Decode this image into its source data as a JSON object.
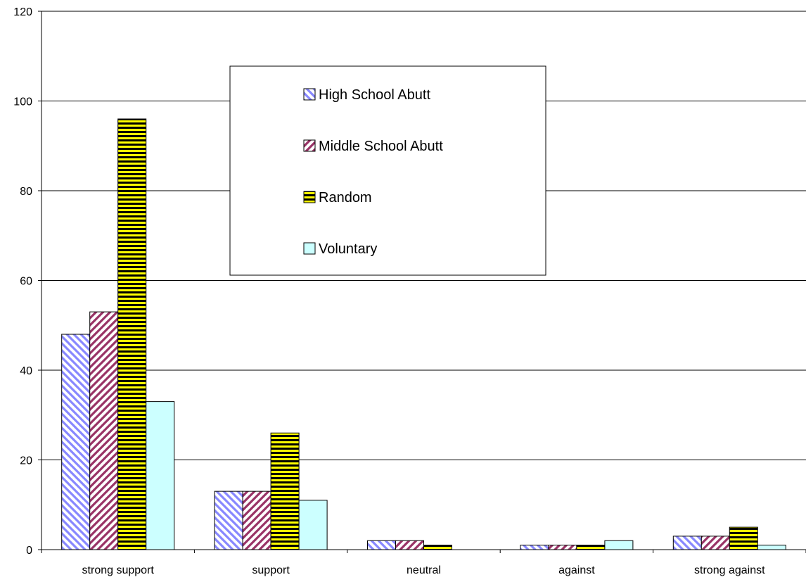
{
  "chart_data": {
    "type": "bar",
    "categories": [
      "strong support",
      "support",
      "neutral",
      "against",
      "strong against"
    ],
    "series": [
      {
        "name": "High School Abutt",
        "values": [
          48,
          13,
          2,
          1,
          3
        ],
        "pattern": "diagonal-down",
        "color": "#8888ff"
      },
      {
        "name": "Middle School Abutt",
        "values": [
          53,
          13,
          2,
          1,
          3
        ],
        "pattern": "diagonal-up",
        "color": "#993366"
      },
      {
        "name": "Random",
        "values": [
          96,
          26,
          1,
          1,
          5
        ],
        "pattern": "horizontal-stripes",
        "color": "#ffff00"
      },
      {
        "name": "Voluntary",
        "values": [
          33,
          11,
          0,
          2,
          1
        ],
        "pattern": "solid",
        "color": "#ccffff"
      }
    ],
    "ylim": [
      0,
      120
    ],
    "yticks": [
      0,
      20,
      40,
      60,
      80,
      100,
      120
    ],
    "grid": true,
    "legend_position": "top-center"
  }
}
